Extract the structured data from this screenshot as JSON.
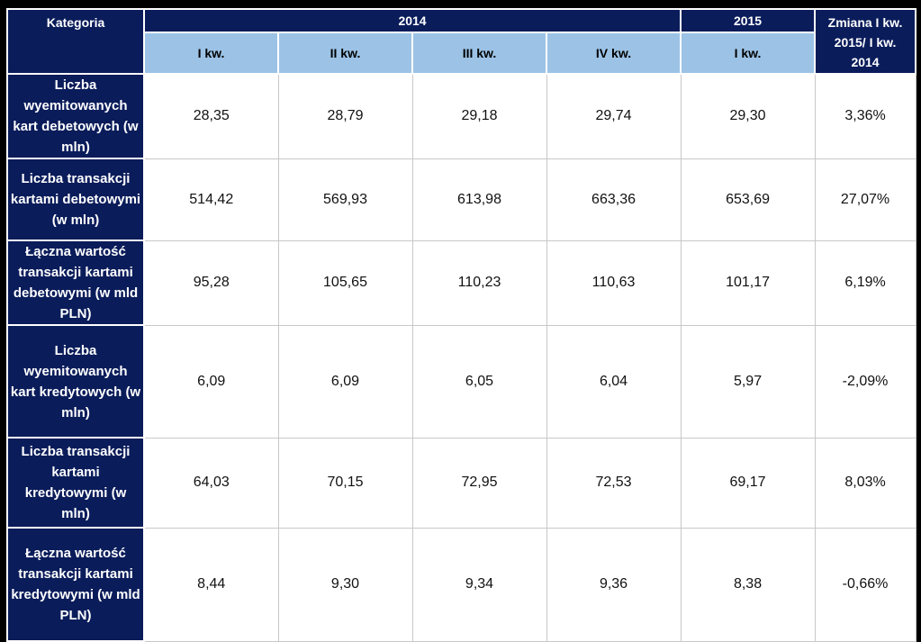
{
  "table": {
    "header": {
      "category": "Kategoria",
      "year_2014": "2014",
      "year_2015": "2015",
      "change": "Zmiana I kw. 2015/ I kw. 2014",
      "quarters_2014": [
        "I kw.",
        "II kw.",
        "III kw.",
        "IV kw."
      ],
      "quarter_2015": "I kw."
    },
    "rows": [
      {
        "label": "Liczba wyemitowanych kart debetowych (w mln)",
        "values": [
          "28,35",
          "28,79",
          "29,18",
          "29,74",
          "29,30"
        ],
        "change": "3,36%"
      },
      {
        "label": "Liczba transakcji kartami debetowymi (w mln)",
        "values": [
          "514,42",
          "569,93",
          "613,98",
          "663,36",
          "653,69"
        ],
        "change": "27,07%"
      },
      {
        "label": "Łączna wartość transakcji kartami debetowymi (w mld PLN)",
        "values": [
          "95,28",
          "105,65",
          "110,23",
          "110,63",
          "101,17"
        ],
        "change": "6,19%"
      },
      {
        "label": "Liczba wyemitowanych kart kredytowych (w mln)",
        "values": [
          "6,09",
          "6,09",
          "6,05",
          "6,04",
          "5,97"
        ],
        "change": "-2,09%"
      },
      {
        "label": "Liczba transakcji kartami kredytowymi (w mln)",
        "values": [
          "64,03",
          "70,15",
          "72,95",
          "72,53",
          "69,17"
        ],
        "change": "8,03%"
      },
      {
        "label": "Łączna wartość transakcji kartami kredytowymi (w mld PLN)",
        "values": [
          "8,44",
          "9,30",
          "9,34",
          "9,36",
          "8,38"
        ],
        "change": "-0,66%"
      }
    ]
  },
  "colors": {
    "header_dark": "#0a1c5a",
    "header_light": "#9cc3e6",
    "frame": "#000000"
  }
}
